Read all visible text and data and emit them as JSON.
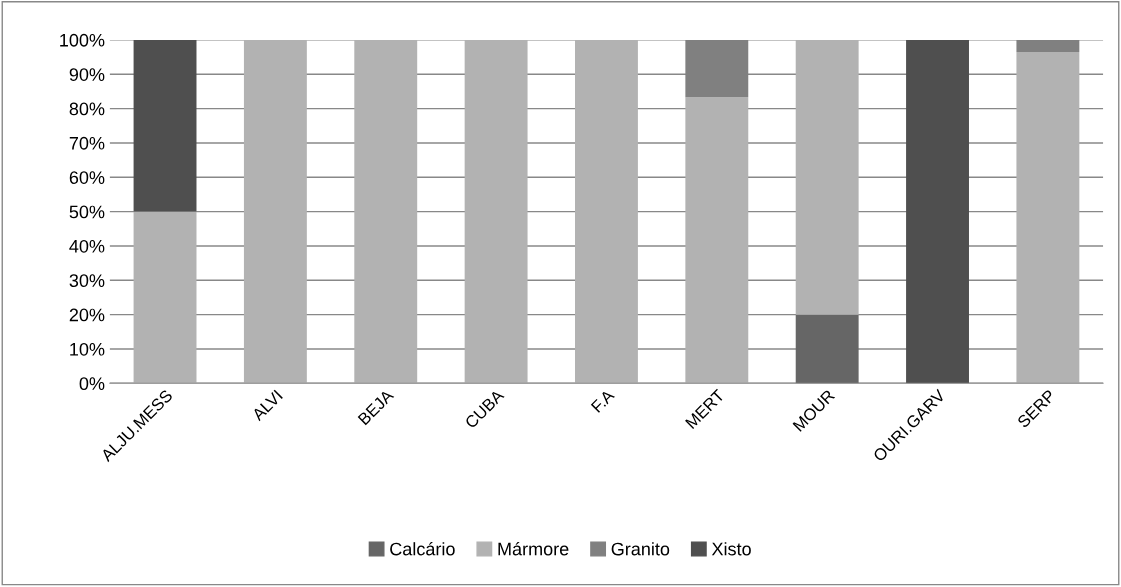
{
  "chart_data": {
    "type": "bar",
    "stacked": true,
    "categories": [
      "ALJU.MESS",
      "ALVI",
      "BEJA",
      "CUBA",
      "F.A",
      "MERT",
      "MOUR",
      "OURI.GARV",
      "SERP"
    ],
    "series": [
      {
        "name": "Calcário",
        "color": "#666666",
        "values": [
          0,
          0,
          0,
          0,
          0,
          0,
          20,
          0,
          0
        ]
      },
      {
        "name": "Mármore",
        "color": "#b2b2b2",
        "values": [
          50,
          100,
          100,
          100,
          100,
          83.3,
          80,
          0,
          96.5
        ]
      },
      {
        "name": "Granito",
        "color": "#808080",
        "values": [
          0,
          0,
          0,
          0,
          0,
          16.7,
          0,
          0,
          3.5
        ]
      },
      {
        "name": "Xisto",
        "color": "#4f4f4f",
        "values": [
          50,
          0,
          0,
          0,
          0,
          0,
          0,
          100,
          0
        ]
      }
    ],
    "ylim": [
      0,
      100
    ],
    "yticks": [
      {
        "value": 0,
        "label": "0%"
      },
      {
        "value": 10,
        "label": "10%"
      },
      {
        "value": 20,
        "label": "20%"
      },
      {
        "value": 30,
        "label": "30%"
      },
      {
        "value": 40,
        "label": "40%"
      },
      {
        "value": 50,
        "label": "50%"
      },
      {
        "value": 60,
        "label": "60%"
      },
      {
        "value": 70,
        "label": "70%"
      },
      {
        "value": 80,
        "label": "80%"
      },
      {
        "value": 90,
        "label": "90%"
      },
      {
        "value": 100,
        "label": "100%"
      }
    ],
    "grid": "y",
    "legend": "bottom"
  }
}
